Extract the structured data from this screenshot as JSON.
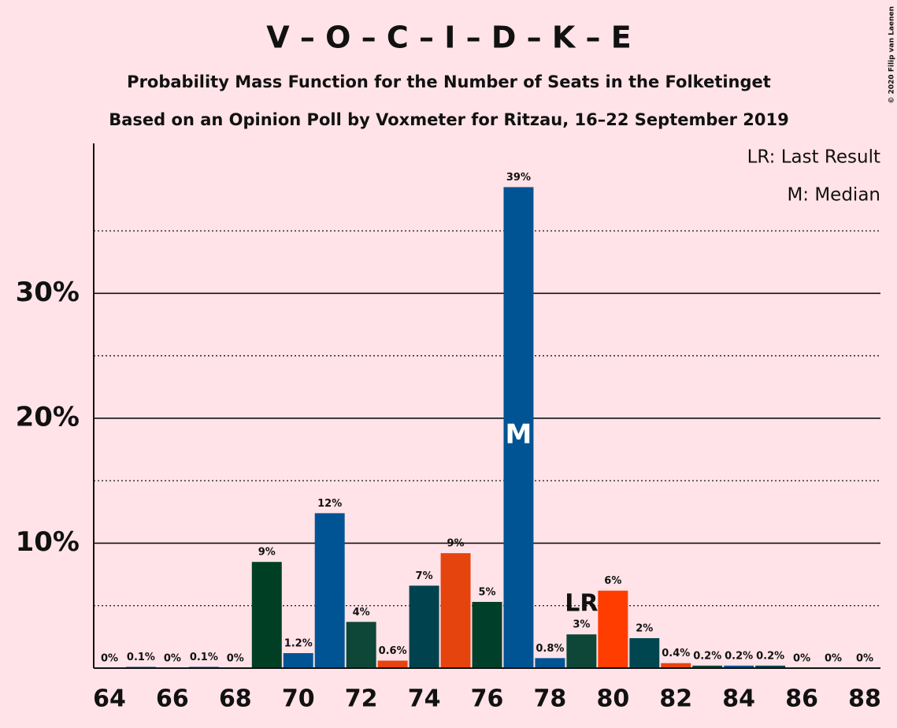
{
  "chart_data": {
    "type": "bar",
    "title": "V – O – C – I – D – K – E",
    "subtitle": "Probability Mass Function for the Number of Seats in the Folketinget",
    "subtitle2": "Based on an Opinion Poll by Voxmeter for Ritzau, 16–22 September 2019",
    "copyright": "© 2020 Filip van Laenen",
    "legend": [
      "LR: Last Result",
      "M: Median"
    ],
    "legend_position": "top-right",
    "x": [
      64,
      65,
      66,
      67,
      68,
      69,
      70,
      71,
      72,
      73,
      74,
      75,
      76,
      77,
      78,
      79,
      80,
      81,
      82,
      83,
      84,
      85,
      86,
      87,
      88
    ],
    "values": [
      0,
      0.1,
      0,
      0.1,
      0,
      8.5,
      1.2,
      12.4,
      3.7,
      0.6,
      6.6,
      9.2,
      5.3,
      38.5,
      0.8,
      2.7,
      6.2,
      2.4,
      0.4,
      0.2,
      0.2,
      0.2,
      0,
      0,
      0
    ],
    "value_labels": [
      "0%",
      "0.1%",
      "0%",
      "0.1%",
      "0%",
      "9%",
      "1.2%",
      "12%",
      "4%",
      "0.6%",
      "7%",
      "9%",
      "5%",
      "39%",
      "0.8%",
      "3%",
      "6%",
      "2%",
      "0.4%",
      "0.2%",
      "0.2%",
      "0.2%",
      "0%",
      "0%",
      "0%"
    ],
    "colors": [
      "#005494",
      "#005494",
      "#005494",
      "#005494",
      "#005494",
      "#003f24",
      "#005494",
      "#005494",
      "#0e4737",
      "#e8430f",
      "#00434f",
      "#e6440f",
      "#00402a",
      "#005494",
      "#005494",
      "#0e4737",
      "#ff3d00",
      "#004650",
      "#e8430f",
      "#0e4737",
      "#005494",
      "#004650",
      "#005494",
      "#005494",
      "#005494"
    ],
    "annotations": [
      {
        "text": "M",
        "x": 77
      },
      {
        "text": "LR",
        "x": 79
      }
    ],
    "xlim": [
      63.5,
      88.5
    ],
    "xticks": [
      64,
      66,
      68,
      70,
      72,
      74,
      76,
      78,
      80,
      82,
      84,
      86,
      88
    ],
    "ylim": [
      0,
      42
    ],
    "yticks": [
      {
        "value": 10,
        "label": "10%"
      },
      {
        "value": 20,
        "label": "20%"
      },
      {
        "value": 30,
        "label": "30%"
      }
    ],
    "minor_yticks": [
      5,
      15,
      25,
      35
    ],
    "grid": true
  }
}
